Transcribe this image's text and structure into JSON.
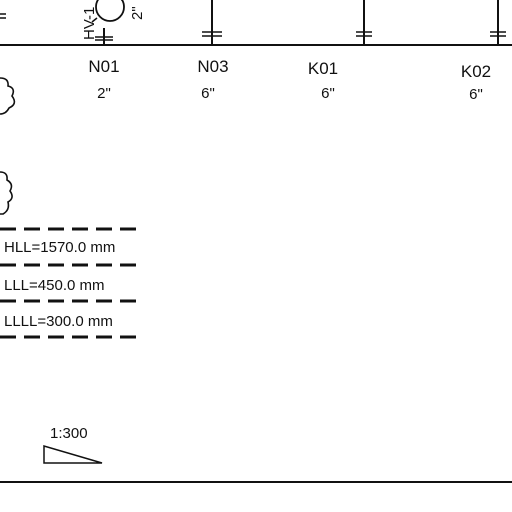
{
  "drawing": {
    "instrument": {
      "tag": "HV-1",
      "size": "2\""
    },
    "nozzles": [
      {
        "tag": "N01",
        "size": "2\""
      },
      {
        "tag": "N03",
        "size": "6\""
      },
      {
        "tag": "K01",
        "size": "6\""
      },
      {
        "tag": "K02",
        "size": "6\""
      }
    ],
    "levels": [
      {
        "label": "HLL=1570.0 mm"
      },
      {
        "label": "LLL=450.0 mm"
      },
      {
        "label": "LLLL=300.0 mm"
      }
    ],
    "slope": {
      "label": "1:300"
    }
  }
}
